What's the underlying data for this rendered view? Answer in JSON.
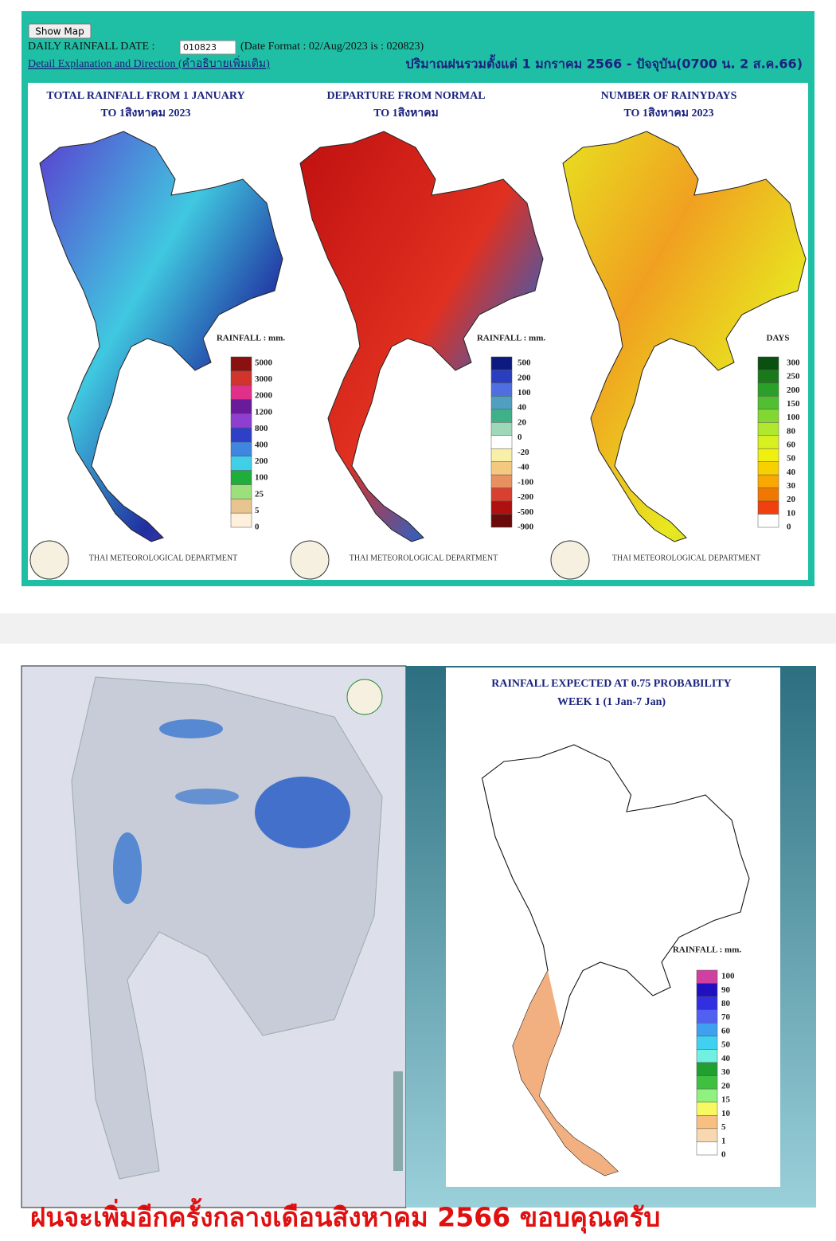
{
  "top": {
    "button": "Show Map",
    "date_label": "DAILY RAINFALL DATE :",
    "date_value": "010823",
    "date_format": "(Date Format : 02/Aug/2023 is : 020823)",
    "detail_link": "Detail Explanation and Direction (คำอธิบายเพิ่มเติม)",
    "thai_heading": "ปริมาณฝนรวมตั้งแต่ 1 มกราคม 2566 - ปัจจุบัน(0700 น. 2 ส.ค.66)"
  },
  "panels": [
    {
      "title_line1": "TOTAL RAINFALL FROM 1 JANUARY",
      "title_line2": "TO 1สิงหาคม 2023",
      "legend_title": "RAINFALL : mm.",
      "legend": {
        "labels": [
          5000,
          3000,
          2000,
          1200,
          800,
          400,
          200,
          100,
          25,
          5,
          0
        ],
        "colors": [
          "#8b1010",
          "#d0342c",
          "#e0308a",
          "#6a1b9a",
          "#8e3fd0",
          "#2e3fc8",
          "#3f86e0",
          "#3fd0e8",
          "#1fae3a",
          "#9be07a",
          "#e8c490",
          "#fff0dc"
        ]
      },
      "footer": "THAI METEOROLOGICAL DEPARTMENT"
    },
    {
      "title_line1": "DEPARTURE FROM NORMAL",
      "title_line2": "TO 1สิงหาคม",
      "legend_title": "RAINFALL : mm.",
      "legend": {
        "labels": [
          500,
          200,
          100,
          40,
          20,
          0,
          -20,
          -40,
          -100,
          -200,
          -500,
          -900
        ],
        "colors": [
          "#0d1a80",
          "#2a3fc0",
          "#4f6fe0",
          "#4fa0c0",
          "#3fb08a",
          "#9ed8b8",
          "#ffffff",
          "#f8f0a8",
          "#f5c880",
          "#e89060",
          "#d84030",
          "#b01010",
          "#6a0a0a"
        ]
      },
      "footer": "THAI METEOROLOGICAL DEPARTMENT"
    },
    {
      "title_line1": "NUMBER OF RAINYDAYS",
      "title_line2": "TO 1สิงหาคม 2023",
      "legend_title": "DAYS",
      "legend": {
        "labels": [
          300,
          250,
          200,
          150,
          100,
          80,
          60,
          50,
          40,
          30,
          20,
          10,
          0
        ],
        "colors": [
          "#0a5010",
          "#1a7a1a",
          "#2aa02a",
          "#50c030",
          "#80d830",
          "#b0e830",
          "#d8f020",
          "#f0f010",
          "#f8d000",
          "#f8a800",
          "#f07800",
          "#f04010",
          "#ffffff"
        ]
      },
      "footer": "THAI METEOROLOGICAL DEPARTMENT"
    }
  ],
  "forecast": {
    "title": "RAINFALL EXPECTED AT 0.75 PROBABILITY",
    "subtitle": "WEEK 1 (1 Jan-7 Jan)",
    "legend_title": "RAINFALL : mm.",
    "legend": {
      "labels": [
        100,
        90,
        80,
        70,
        60,
        50,
        40,
        30,
        20,
        15,
        10,
        5,
        1,
        0
      ],
      "colors": [
        "#d040a0",
        "#2010c0",
        "#3030e0",
        "#5060f0",
        "#40a0f0",
        "#40d0f0",
        "#70f0e0",
        "#20a030",
        "#40c040",
        "#90f080",
        "#f8f860",
        "#f8c080",
        "#f8d8b0",
        "#ffffff"
      ]
    }
  },
  "caption": "ฝนจะเพิ่มอีกครั้งกลางเดือนสิงหาคม 2566 ขอบคุณครับ"
}
